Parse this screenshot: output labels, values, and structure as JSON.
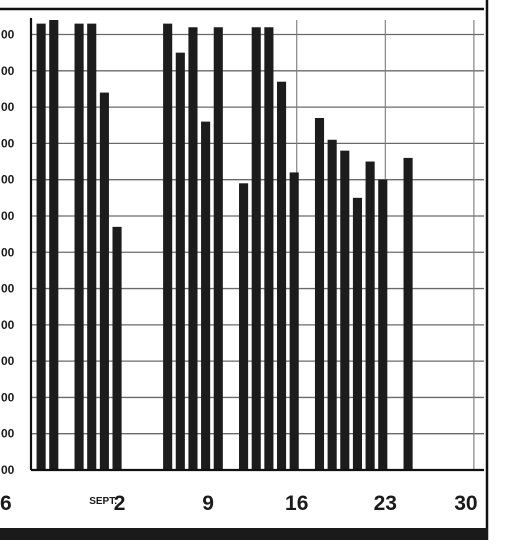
{
  "chart_data": {
    "type": "bar",
    "title": "",
    "xlabel": "",
    "ylabel": "",
    "y_tick_labels": [
      "00",
      "00",
      "00",
      "00",
      "00",
      "00",
      "00",
      "00",
      "00",
      "00",
      "00",
      "00",
      "00"
    ],
    "x_tick_labels": [
      {
        "day": 26,
        "text": "6"
      },
      {
        "day": 31.7,
        "text": "SEPT."
      },
      {
        "day": 33,
        "text": "2"
      },
      {
        "day": 40,
        "text": "9"
      },
      {
        "day": 47,
        "text": "16"
      },
      {
        "day": 54,
        "text": "23"
      },
      {
        "day": 61,
        "text": "30"
      }
    ],
    "xlim": [
      26,
      61.8
    ],
    "ylim": [
      0,
      12.4
    ],
    "grid": true,
    "series": [
      {
        "x": [
          26.8,
          27.8,
          29.8,
          30.8,
          31.8,
          32.8,
          36.8,
          37.8,
          38.8,
          39.8,
          40.8,
          42.8,
          43.8,
          44.8,
          45.8,
          46.8,
          48.8,
          49.8,
          50.8,
          51.8,
          52.8,
          53.8,
          55.8,
          56.8
        ],
        "values": [
          12.3,
          12.4,
          12.3,
          12.3,
          10.4,
          6.7,
          12.3,
          11.5,
          12.2,
          9.6,
          12.2,
          7.9,
          12.2,
          12.2,
          10.7,
          8.2,
          9.7,
          9.1,
          8.8,
          7.5,
          8.5,
          8.0,
          8.6,
          0
        ]
      }
    ]
  }
}
